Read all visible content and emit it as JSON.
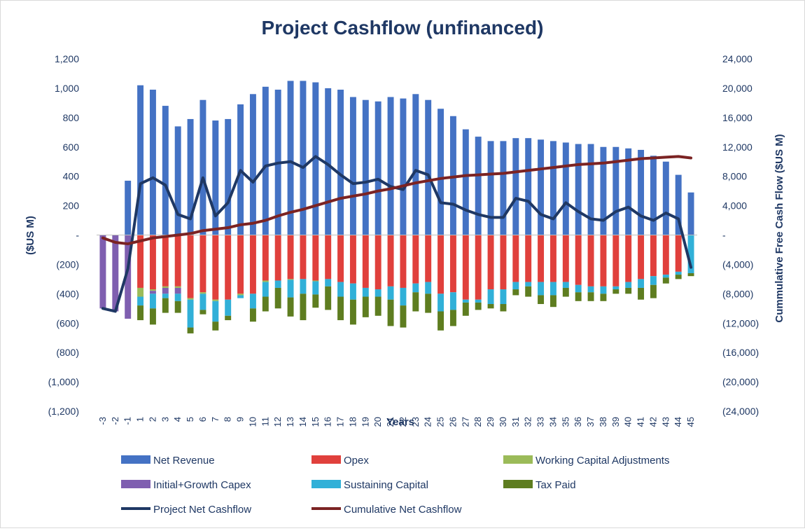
{
  "chart_data": {
    "type": "bar",
    "subtype": "stacked bar with line overlay on secondary axis",
    "title": "Project Cashflow (unfinanced)",
    "xlabel": "Years",
    "ylabel": "($US M)",
    "y2label": "Cummulative Free Cash Flow ($US M)",
    "ylim": [
      -1200,
      1200
    ],
    "y2lim": [
      -24000,
      24000
    ],
    "ytick_step": 200,
    "y2tick_step": 4000,
    "y_tick_labels": [
      "1,200",
      "1,000",
      "800",
      "600",
      "400",
      "200",
      "-",
      "(200)",
      "(400)",
      "(600)",
      "(800)",
      "(1,000)",
      "(1,200)"
    ],
    "y2_tick_labels": [
      "24,000",
      "20,000",
      "16,000",
      "12,000",
      "8,000",
      "4,000",
      "-",
      "(4,000)",
      "(8,000)",
      "(12,000)",
      "(16,000)",
      "(20,000)",
      "(24,000)"
    ],
    "grid": false,
    "legend_position": "bottom",
    "categories": [
      "-3",
      "-2",
      "-1",
      "1",
      "2",
      "3",
      "4",
      "5",
      "6",
      "7",
      "8",
      "9",
      "10",
      "11",
      "12",
      "13",
      "14",
      "15",
      "16",
      "17",
      "18",
      "19",
      "20",
      "21",
      "22",
      "23",
      "24",
      "25",
      "26",
      "27",
      "28",
      "29",
      "30",
      "31",
      "32",
      "33",
      "34",
      "35",
      "36",
      "37",
      "38",
      "39",
      "40",
      "41",
      "42",
      "43",
      "44",
      "45"
    ],
    "series": [
      {
        "name": "Net Revenue",
        "kind": "bar",
        "color": "#4472c4",
        "values": [
          0,
          0,
          370,
          1020,
          990,
          880,
          740,
          790,
          920,
          780,
          790,
          890,
          960,
          1010,
          990,
          1050,
          1050,
          1040,
          1000,
          990,
          940,
          920,
          910,
          940,
          930,
          960,
          920,
          860,
          810,
          720,
          670,
          640,
          640,
          660,
          660,
          650,
          640,
          630,
          620,
          620,
          600,
          600,
          590,
          580,
          540,
          500,
          410,
          290
        ]
      },
      {
        "name": "Opex",
        "kind": "bar",
        "color": "#e0403c",
        "values": [
          0,
          0,
          0,
          -360,
          -370,
          -350,
          -350,
          -430,
          -390,
          -440,
          -440,
          -400,
          -400,
          -310,
          -310,
          -300,
          -300,
          -310,
          -300,
          -320,
          -330,
          -360,
          -370,
          -350,
          -360,
          -330,
          -320,
          -400,
          -390,
          -440,
          -440,
          -370,
          -370,
          -320,
          -320,
          -320,
          -320,
          -320,
          -340,
          -350,
          -350,
          -350,
          -320,
          -300,
          -280,
          -270,
          -250,
          0
        ]
      },
      {
        "name": "Working Capital Adjustments",
        "kind": "bar",
        "color": "#9bbb59",
        "values": [
          0,
          0,
          0,
          -60,
          -10,
          -10,
          -10,
          -10,
          -10,
          -10,
          0,
          -10,
          0,
          -10,
          0,
          -5,
          0,
          -5,
          0,
          0,
          0,
          0,
          0,
          0,
          0,
          0,
          0,
          0,
          0,
          0,
          0,
          0,
          0,
          0,
          0,
          0,
          0,
          0,
          0,
          0,
          0,
          0,
          0,
          0,
          0,
          0,
          0,
          0
        ]
      },
      {
        "name": "Initial+Growth Capex",
        "kind": "bar",
        "color": "#7f5fb0",
        "values": [
          -500,
          -520,
          -570,
          0,
          -20,
          -40,
          -40,
          0,
          0,
          0,
          0,
          0,
          0,
          0,
          0,
          0,
          0,
          0,
          0,
          0,
          0,
          0,
          0,
          0,
          0,
          0,
          0,
          0,
          0,
          0,
          0,
          0,
          0,
          0,
          0,
          0,
          0,
          0,
          0,
          0,
          0,
          0,
          0,
          0,
          0,
          0,
          0,
          0
        ]
      },
      {
        "name": "Sustaining Capital",
        "kind": "bar",
        "color": "#31b0d8",
        "values": [
          0,
          0,
          0,
          -60,
          -100,
          -30,
          -50,
          -190,
          -110,
          -140,
          -110,
          -20,
          -100,
          -100,
          -50,
          -120,
          -100,
          -90,
          -50,
          -100,
          -110,
          -60,
          -50,
          -90,
          -120,
          -60,
          -80,
          -120,
          -120,
          -20,
          -20,
          -100,
          -100,
          -50,
          -30,
          -90,
          -90,
          -40,
          -50,
          -40,
          -50,
          -20,
          -40,
          -60,
          -60,
          -20,
          -20,
          -260
        ]
      },
      {
        "name": "Tax Paid",
        "kind": "bar",
        "color": "#5e7d20",
        "values": [
          0,
          0,
          0,
          -100,
          -110,
          -100,
          -80,
          -40,
          -30,
          -60,
          -30,
          0,
          -90,
          -100,
          -140,
          -130,
          -180,
          -90,
          -160,
          -160,
          -170,
          -140,
          -130,
          -180,
          -150,
          -130,
          -130,
          -130,
          -110,
          -90,
          -50,
          -30,
          -50,
          -40,
          -70,
          -60,
          -80,
          -60,
          -60,
          -60,
          -50,
          -30,
          -40,
          -80,
          -90,
          -40,
          -30,
          -20
        ]
      },
      {
        "name": "Project Net Cashflow",
        "kind": "line",
        "axis": "secondary",
        "color": "#1f3864",
        "values": [
          -10000,
          -10400,
          -4600,
          7000,
          7800,
          6800,
          2800,
          2200,
          7800,
          2600,
          4400,
          8800,
          7200,
          9400,
          9800,
          10000,
          9200,
          10700,
          9600,
          8200,
          7000,
          7200,
          7600,
          6600,
          6200,
          8800,
          8200,
          4400,
          4200,
          3400,
          2800,
          2400,
          2400,
          5000,
          4600,
          2800,
          2200,
          4400,
          3200,
          2200,
          2000,
          3200,
          3800,
          2600,
          2000,
          3000,
          2200,
          -4400
        ]
      },
      {
        "name": "Cumulative Net Cashflow",
        "kind": "line",
        "axis": "secondary",
        "color": "#7b2323",
        "values": [
          -400,
          -1000,
          -1200,
          -800,
          -400,
          -200,
          0,
          200,
          600,
          800,
          1000,
          1400,
          1600,
          2000,
          2600,
          3100,
          3500,
          4000,
          4500,
          5000,
          5300,
          5600,
          6000,
          6300,
          6700,
          7100,
          7400,
          7700,
          7900,
          8100,
          8200,
          8300,
          8400,
          8600,
          8800,
          9000,
          9200,
          9400,
          9600,
          9700,
          9800,
          10000,
          10200,
          10400,
          10500,
          10600,
          10700,
          10500
        ]
      }
    ]
  }
}
